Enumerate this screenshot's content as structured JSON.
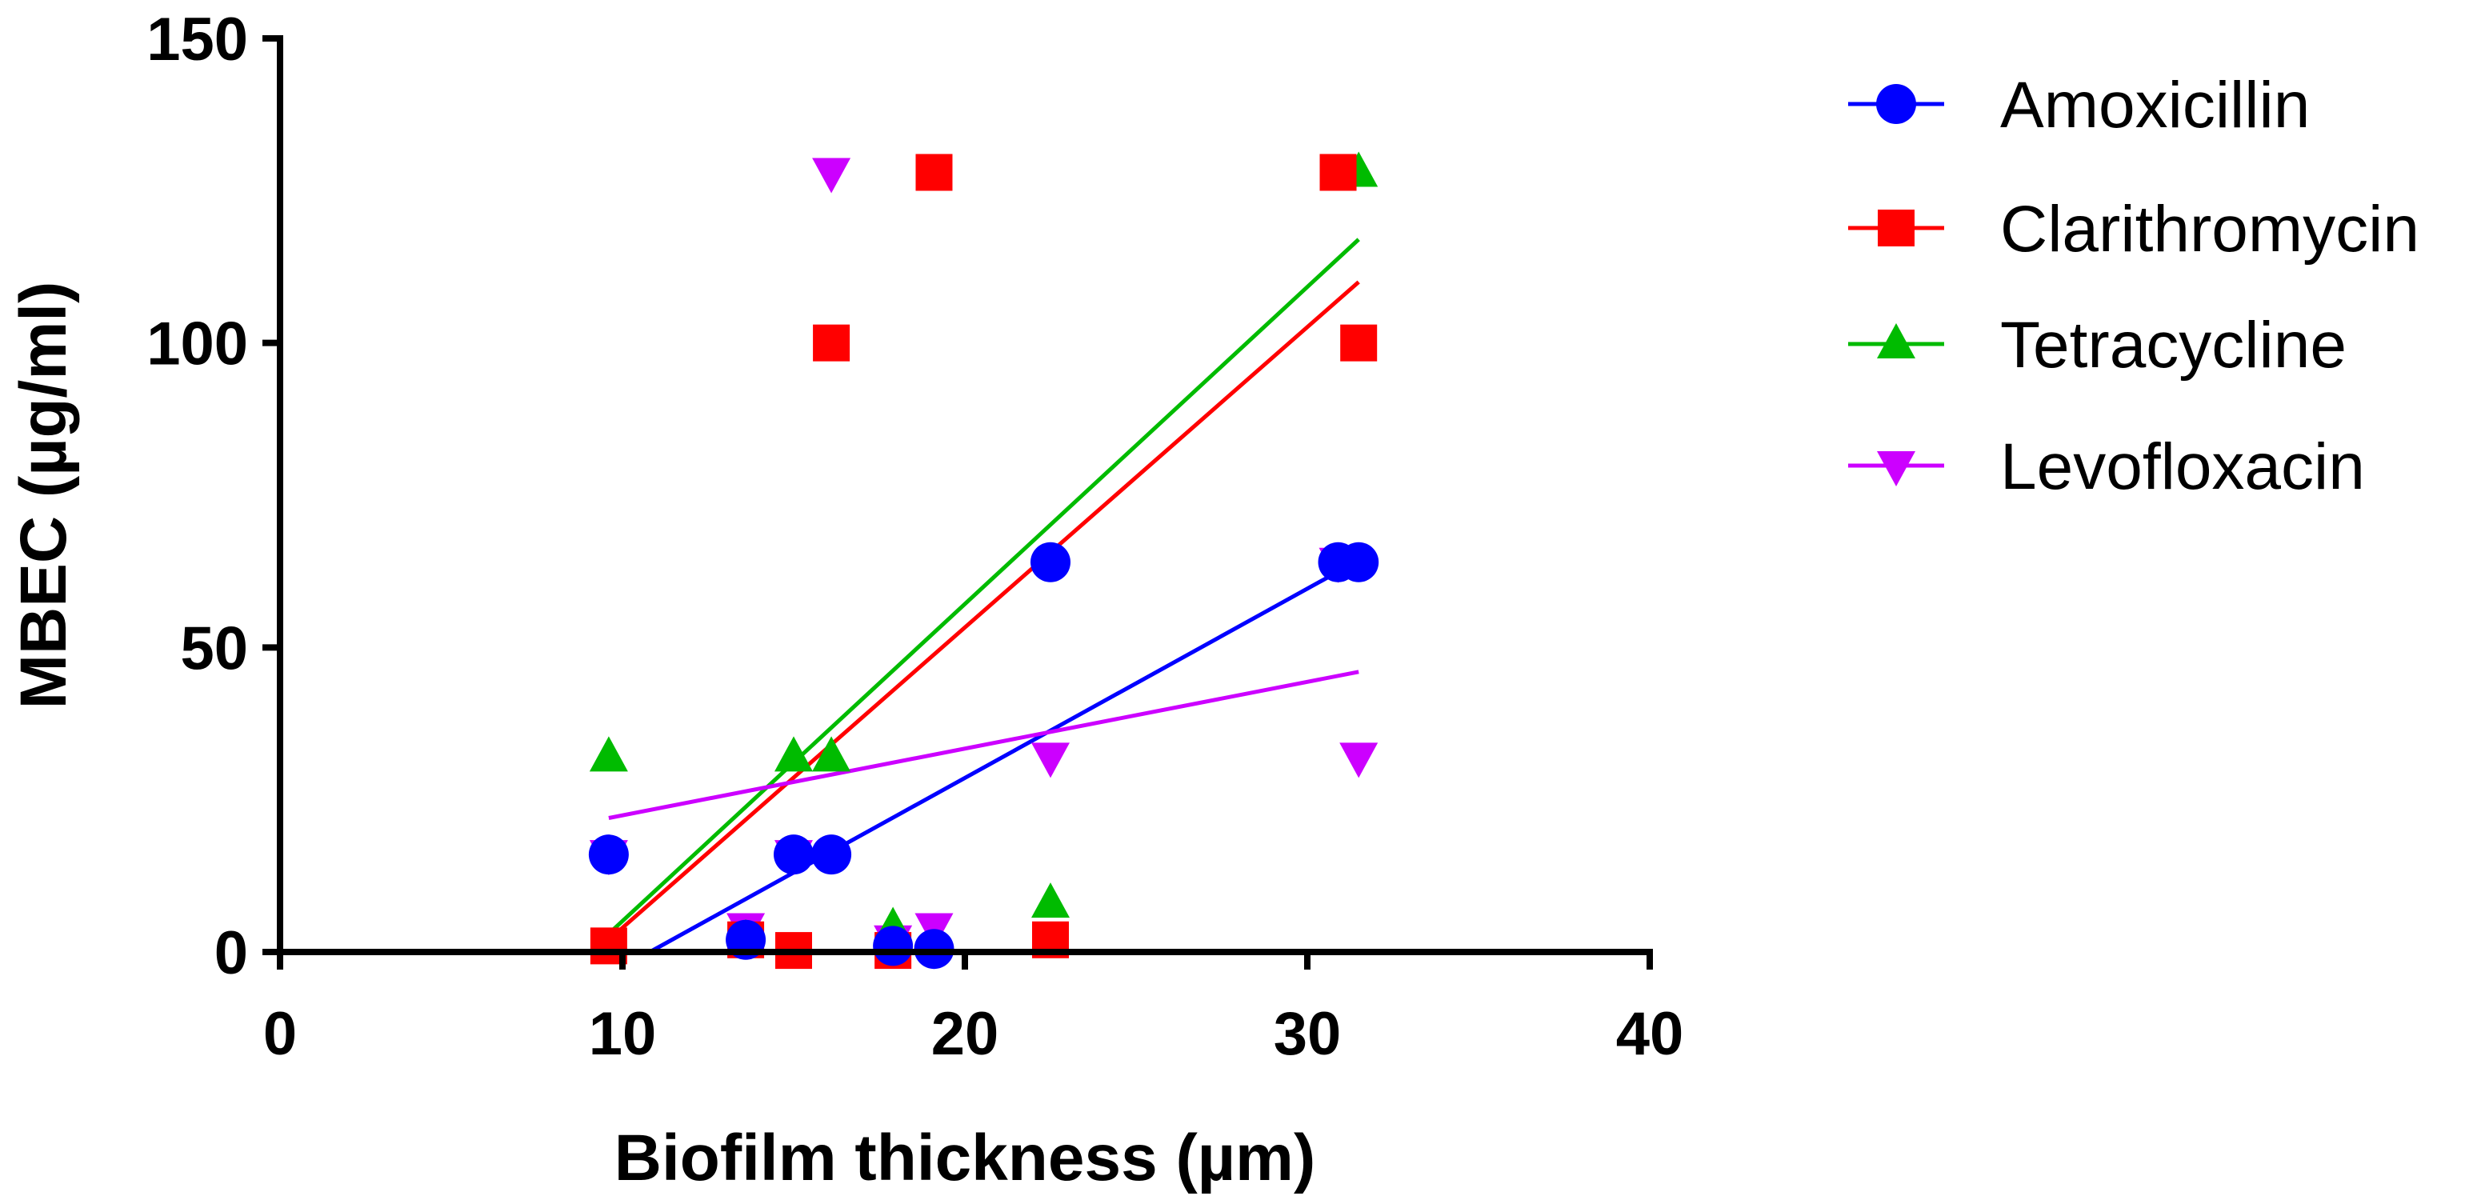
{
  "chart_data": {
    "type": "scatter",
    "title": "",
    "xlabel": "Biofilm thickness (µm)",
    "ylabel": "MBEC (µg/ml)",
    "xlim": [
      0,
      40
    ],
    "ylim": [
      0,
      150
    ],
    "xticks": [
      "0",
      "10",
      "20",
      "30",
      "40"
    ],
    "yticks": [
      "0",
      "50",
      "100",
      "150"
    ],
    "legend_position": "right",
    "series": [
      {
        "name": "Amoxicillin",
        "color": "#0000ff",
        "marker": "circle",
        "x": [
          9.6,
          13.6,
          15.0,
          16.1,
          17.9,
          19.1,
          22.5,
          30.9,
          31.5
        ],
        "y": [
          16,
          2,
          16,
          16,
          1,
          0.5,
          64,
          64,
          64
        ],
        "fit": {
          "x": [
            10.8,
            31.4
          ],
          "y": [
            0,
            64
          ]
        }
      },
      {
        "name": "Clarithromycin",
        "color": "#ff0000",
        "marker": "square",
        "x": [
          9.6,
          13.6,
          15.0,
          16.1,
          17.9,
          19.1,
          22.5,
          30.9,
          31.5
        ],
        "y": [
          1,
          2,
          0.25,
          100,
          0.25,
          128,
          2,
          128,
          100
        ],
        "fit": {
          "x": [
            9.6,
            31.5
          ],
          "y": [
            2,
            110
          ]
        }
      },
      {
        "name": "Tetracycline",
        "color": "#00bb00",
        "marker": "triangle-up",
        "x": [
          9.6,
          13.6,
          15.0,
          16.1,
          17.9,
          22.5,
          31.5
        ],
        "y": [
          32,
          2,
          32,
          32,
          4,
          8,
          128
        ],
        "fit": {
          "x": [
            9.6,
            31.5
          ],
          "y": [
            3,
            117
          ]
        }
      },
      {
        "name": "Levofloxacin",
        "color": "#cc00ff",
        "marker": "triangle-down",
        "x": [
          9.6,
          13.6,
          15.0,
          16.1,
          17.9,
          19.1,
          22.5,
          30.9,
          31.5
        ],
        "y": [
          16,
          4,
          16,
          128,
          2,
          4,
          32,
          64,
          32
        ],
        "fit": {
          "x": [
            9.6,
            31.5
          ],
          "y": [
            22,
            46
          ]
        }
      }
    ]
  }
}
